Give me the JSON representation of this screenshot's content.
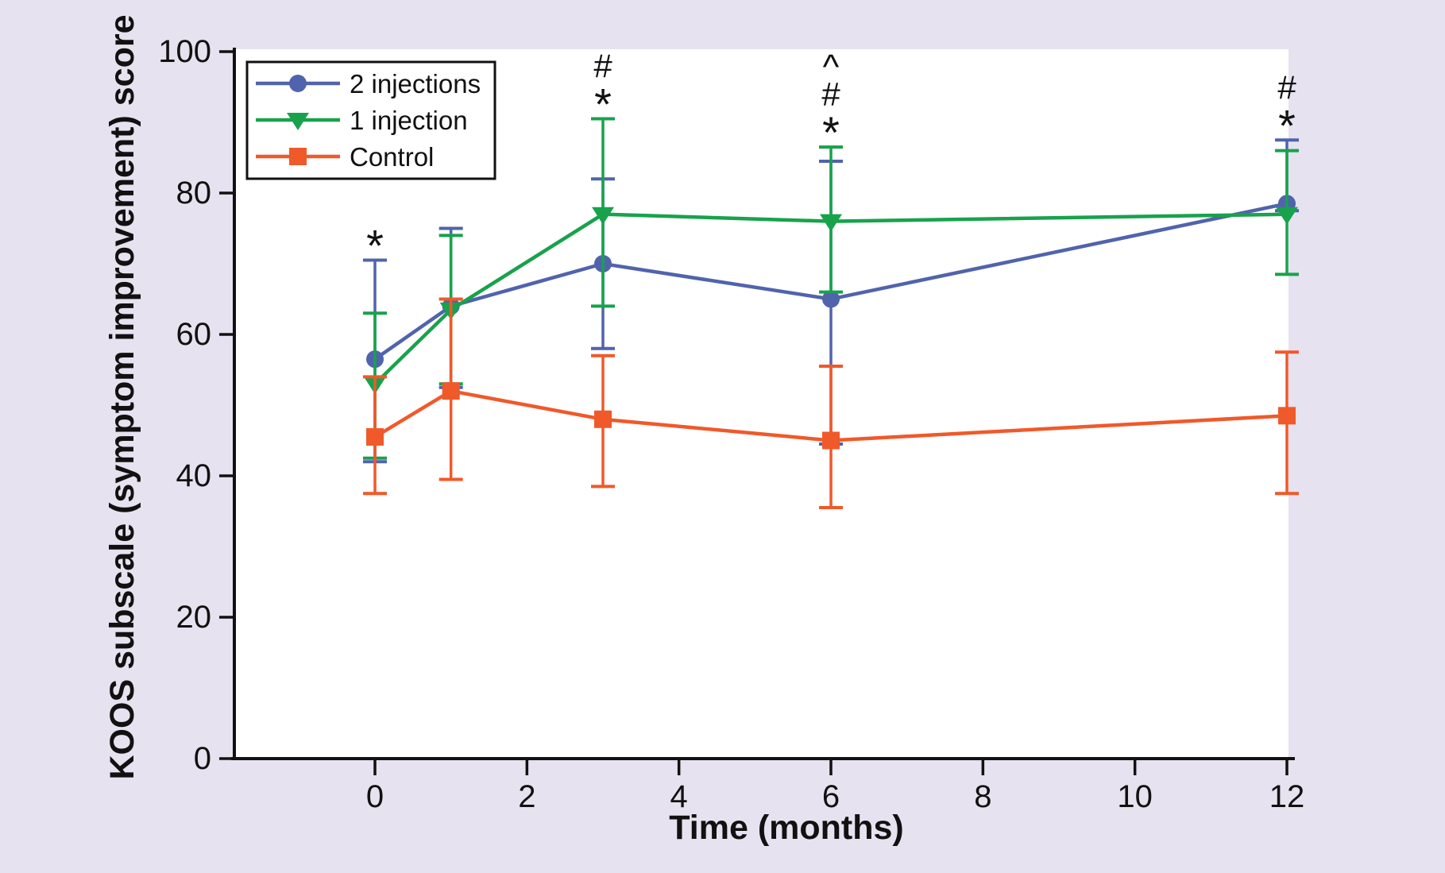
{
  "figure": {
    "background_color": "#e6e2ef",
    "plot_background_color": "#ffffff",
    "axis_color": "#111111",
    "text_color": "#111111"
  },
  "chart_data": {
    "type": "line",
    "title": "",
    "xlabel": "Time (months)",
    "ylabel": "KOOS subscale (symptom improvement) score",
    "xlim": [
      -1.87,
      12.02
    ],
    "ylim": [
      0,
      100
    ],
    "x_ticks": [
      0,
      2,
      4,
      6,
      8,
      10,
      12
    ],
    "y_ticks": [
      0,
      20,
      40,
      60,
      80,
      100
    ],
    "grid": false,
    "x": [
      0,
      1,
      3,
      6,
      12
    ],
    "series": [
      {
        "name": "2 injections",
        "marker": "circle",
        "color": "#5163ac",
        "values": [
          56.5,
          64,
          70,
          65,
          78.5
        ],
        "err_upper": [
          70.5,
          75,
          82,
          84.5,
          87.5
        ],
        "err_lower": [
          42,
          52.5,
          58,
          44.5,
          77.5
        ]
      },
      {
        "name": "1 injection",
        "marker": "triangle-down",
        "color": "#18a24c",
        "values": [
          53,
          63.5,
          77,
          76,
          77
        ],
        "err_upper": [
          63,
          74,
          90.5,
          86.5,
          86
        ],
        "err_lower": [
          42.5,
          53,
          64,
          66,
          68.5
        ]
      },
      {
        "name": "Control",
        "marker": "square",
        "color": "#f0592a",
        "values": [
          45.5,
          52,
          48,
          45,
          48.5
        ],
        "err_upper": [
          54,
          65,
          57,
          55.5,
          57.5
        ],
        "err_lower": [
          37.5,
          39.5,
          38.5,
          35.5,
          37.5
        ]
      }
    ],
    "annotations": [
      {
        "x": 0,
        "symbols": [
          "*"
        ]
      },
      {
        "x": 3,
        "symbols": [
          "#",
          "*"
        ]
      },
      {
        "x": 6,
        "symbols": [
          "^",
          "#",
          "*"
        ]
      },
      {
        "x": 12,
        "symbols": [
          "#",
          "*"
        ]
      }
    ],
    "legend": {
      "position": "top-left",
      "entries": [
        "2 injections",
        "1 injection",
        "Control"
      ]
    }
  }
}
